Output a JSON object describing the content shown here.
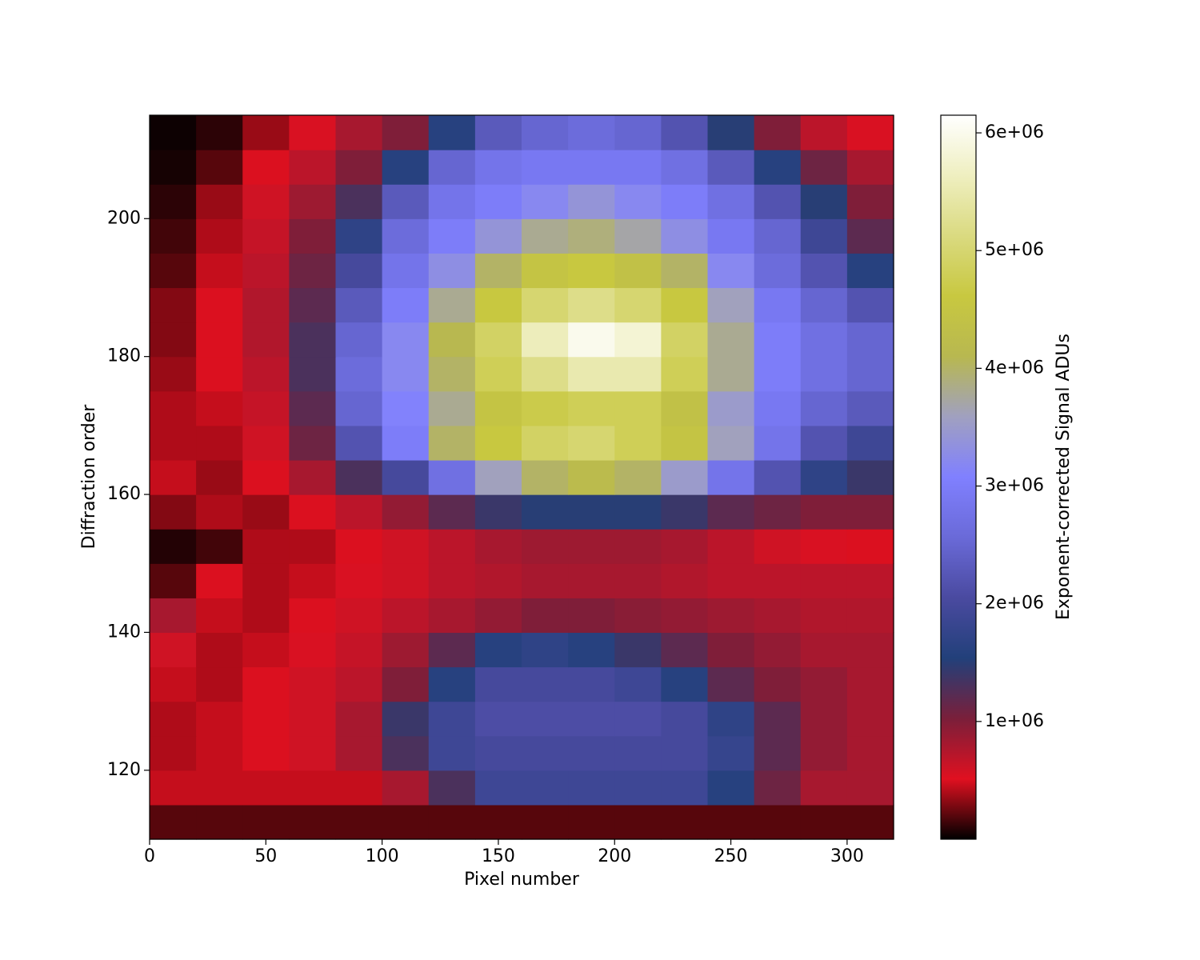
{
  "chart_data": {
    "type": "heatmap",
    "xlabel": "Pixel number",
    "ylabel": "Diffraction order",
    "colorbar_label": "Exponent-corrected Signal ADUs",
    "xbins": [
      0,
      20,
      40,
      60,
      80,
      100,
      120,
      140,
      160,
      180,
      200,
      220,
      240,
      260,
      280,
      300,
      320
    ],
    "ybins": [
      110,
      115,
      120,
      125,
      130,
      135,
      140,
      145,
      150,
      155,
      160,
      165,
      170,
      175,
      180,
      185,
      190,
      195,
      200,
      205,
      210,
      215
    ],
    "z": [
      [
        200000.0,
        200000.0,
        200000.0,
        200000.0,
        200000.0,
        200000.0,
        200000.0,
        200000.0,
        200000.0,
        200000.0,
        200000.0,
        200000.0,
        200000.0,
        200000.0,
        200000.0,
        200000.0
      ],
      [
        450000.0,
        450000.0,
        450000.0,
        450000.0,
        450000.0,
        800000.0,
        1300000.0,
        1900000.0,
        1900000.0,
        1900000.0,
        1900000.0,
        1900000.0,
        1600000.0,
        1100000.0,
        800000.0,
        800000.0
      ],
      [
        400000.0,
        450000.0,
        500000.0,
        600000.0,
        800000.0,
        1300000.0,
        1900000.0,
        2000000.0,
        2000000.0,
        2000000.0,
        2000000.0,
        2000000.0,
        1800000.0,
        1200000.0,
        900000.0,
        800000.0
      ],
      [
        400000.0,
        450000.0,
        500000.0,
        600000.0,
        800000.0,
        1400000.0,
        1900000.0,
        2100000.0,
        2100000.0,
        2100000.0,
        2100000.0,
        2000000.0,
        1700000.0,
        1200000.0,
        900000.0,
        800000.0
      ],
      [
        450000.0,
        400000.0,
        500000.0,
        600000.0,
        700000.0,
        1000000.0,
        1600000.0,
        2000000.0,
        2000000.0,
        2000000.0,
        1900000.0,
        1600000.0,
        1200000.0,
        1000000.0,
        900000.0,
        800000.0
      ],
      [
        600000.0,
        400000.0,
        450000.0,
        550000.0,
        650000.0,
        850000.0,
        1200000.0,
        1600000.0,
        1700000.0,
        1600000.0,
        1400000.0,
        1200000.0,
        1000000.0,
        900000.0,
        800000.0,
        800000.0
      ],
      [
        800000.0,
        450000.0,
        400000.0,
        500000.0,
        600000.0,
        700000.0,
        800000.0,
        900000.0,
        1000000.0,
        1000000.0,
        950000.0,
        900000.0,
        850000.0,
        800000.0,
        750000.0,
        750000.0
      ],
      [
        200000.0,
        500000.0,
        400000.0,
        450000.0,
        550000.0,
        600000.0,
        700000.0,
        750000.0,
        800000.0,
        800000.0,
        800000.0,
        750000.0,
        700000.0,
        700000.0,
        700000.0,
        700000.0
      ],
      [
        80000.0,
        150000.0,
        400000.0,
        400000.0,
        500000.0,
        600000.0,
        700000.0,
        800000.0,
        850000.0,
        850000.0,
        850000.0,
        800000.0,
        700000.0,
        600000.0,
        550000.0,
        500000.0
      ],
      [
        300000.0,
        400000.0,
        350000.0,
        500000.0,
        700000.0,
        900000.0,
        1200000.0,
        1400000.0,
        1500000.0,
        1500000.0,
        1500000.0,
        1400000.0,
        1200000.0,
        1100000.0,
        1000000.0,
        1000000.0
      ],
      [
        450000.0,
        350000.0,
        500000.0,
        800000.0,
        1300000.0,
        2000000.0,
        2700000.0,
        3600000.0,
        4000000.0,
        4200000.0,
        4000000.0,
        3500000.0,
        2800000.0,
        2200000.0,
        1700000.0,
        1400000.0
      ],
      [
        400000.0,
        400000.0,
        600000.0,
        1100000.0,
        2200000.0,
        3000000.0,
        4000000.0,
        4600000.0,
        4900000.0,
        5000000.0,
        4800000.0,
        4500000.0,
        3600000.0,
        2800000.0,
        2200000.0,
        1900000.0
      ],
      [
        400000.0,
        450000.0,
        650000.0,
        1200000.0,
        2500000.0,
        3100000.0,
        3800000.0,
        4500000.0,
        4700000.0,
        4800000.0,
        4800000.0,
        4400000.0,
        3500000.0,
        2900000.0,
        2500000.0,
        2300000.0
      ],
      [
        350000.0,
        500000.0,
        700000.0,
        1300000.0,
        2600000.0,
        3200000.0,
        4000000.0,
        4800000.0,
        5200000.0,
        5500000.0,
        5500000.0,
        4800000.0,
        3800000.0,
        3000000.0,
        2700000.0,
        2500000.0
      ],
      [
        300000.0,
        500000.0,
        750000.0,
        1300000.0,
        2500000.0,
        3200000.0,
        4100000.0,
        4900000.0,
        5600000.0,
        6000000.0,
        5800000.0,
        4900000.0,
        3800000.0,
        3000000.0,
        2700000.0,
        2500000.0
      ],
      [
        300000.0,
        500000.0,
        750000.0,
        1200000.0,
        2300000.0,
        3000000.0,
        3800000.0,
        4600000.0,
        5000000.0,
        5200000.0,
        5000000.0,
        4600000.0,
        3600000.0,
        2900000.0,
        2500000.0,
        2200000.0
      ],
      [
        200000.0,
        450000.0,
        700000.0,
        1100000.0,
        2000000.0,
        2800000.0,
        3300000.0,
        4000000.0,
        4500000.0,
        4600000.0,
        4400000.0,
        4000000.0,
        3200000.0,
        2600000.0,
        2200000.0,
        1600000.0
      ],
      [
        150000.0,
        400000.0,
        650000.0,
        1000000.0,
        1700000.0,
        2600000.0,
        3000000.0,
        3400000.0,
        3800000.0,
        3900000.0,
        3700000.0,
        3300000.0,
        2900000.0,
        2500000.0,
        1900000.0,
        1200000.0
      ],
      [
        100000.0,
        350000.0,
        600000.0,
        850000.0,
        1300000.0,
        2300000.0,
        2800000.0,
        3000000.0,
        3200000.0,
        3400000.0,
        3200000.0,
        3000000.0,
        2700000.0,
        2200000.0,
        1500000.0,
        1000000.0
      ],
      [
        50000.0,
        200000.0,
        500000.0,
        700000.0,
        1000000.0,
        1600000.0,
        2500000.0,
        2800000.0,
        2900000.0,
        2900000.0,
        2900000.0,
        2700000.0,
        2300000.0,
        1600000.0,
        1100000.0,
        800000.0
      ],
      [
        30000.0,
        100000.0,
        350000.0,
        550000.0,
        800000.0,
        1000000.0,
        1600000.0,
        2300000.0,
        2500000.0,
        2600000.0,
        2500000.0,
        2200000.0,
        1500000.0,
        1000000.0,
        700000.0,
        550000.0
      ]
    ],
    "xlim": [
      0,
      320
    ],
    "ylim": [
      110,
      215
    ],
    "xticks": [
      0,
      50,
      100,
      150,
      200,
      250,
      300
    ],
    "yticks": [
      120,
      140,
      160,
      180,
      200
    ],
    "clim": [
      0,
      6150000
    ],
    "cticks": [
      {
        "value": 1000000,
        "label": "1e+06"
      },
      {
        "value": 2000000,
        "label": "2e+06"
      },
      {
        "value": 3000000,
        "label": "3e+06"
      },
      {
        "value": 4000000,
        "label": "4e+06"
      },
      {
        "value": 5000000,
        "label": "5e+06"
      },
      {
        "value": 6000000,
        "label": "6e+06"
      }
    ],
    "colorscale": [
      "#000000",
      "#e01020",
      "#7a1f3a",
      "#22407a",
      "#4a4aa0",
      "#6a6ad8",
      "#8080ff",
      "#a0a0c0",
      "#b8b850",
      "#c8c840",
      "#dada80",
      "#efefc0",
      "#ffffff"
    ]
  }
}
